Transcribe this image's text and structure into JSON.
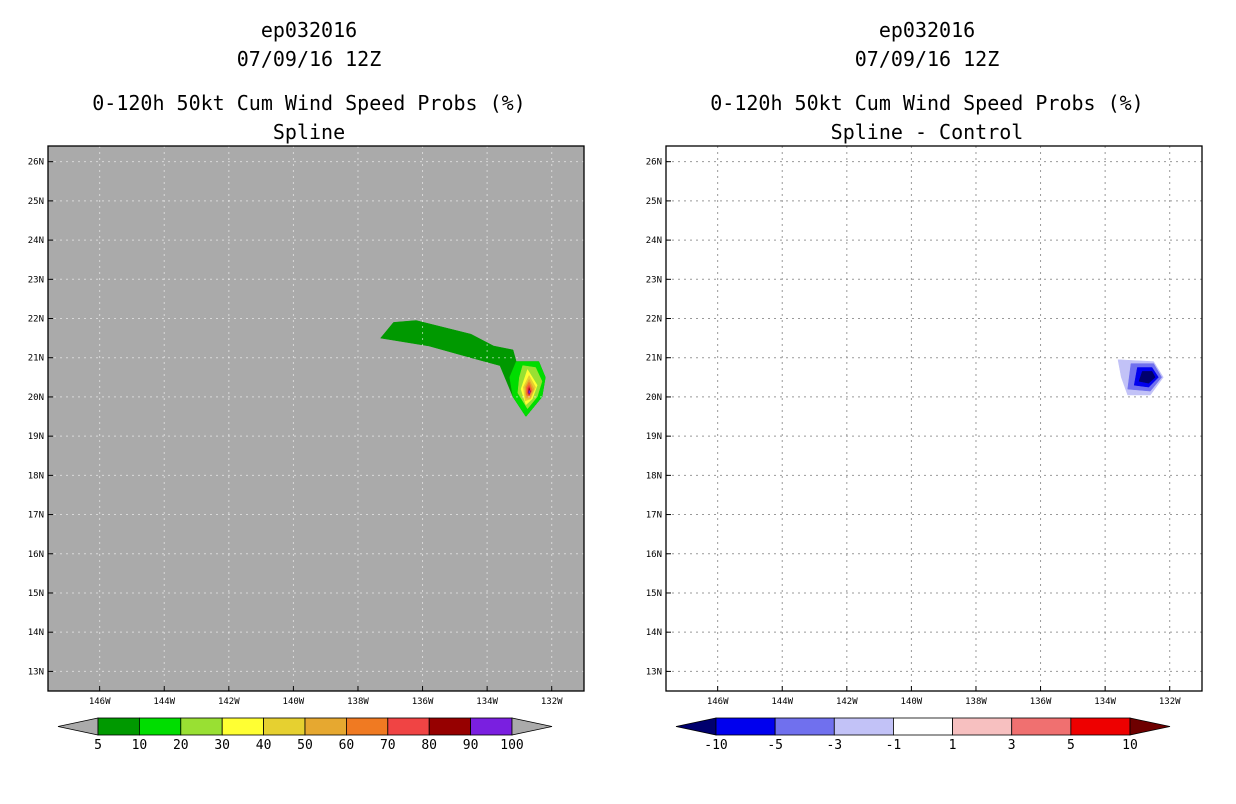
{
  "chart_data": [
    {
      "type": "contour",
      "title": "ep032016",
      "subtitle": "07/09/16 12Z",
      "product": "0-120h 50kt Cum Wind Speed Probs (%)",
      "subtitle2": "Spline",
      "background_color": "#aaaaaa",
      "x_tick_labels": [
        "146W",
        "144W",
        "142W",
        "140W",
        "138W",
        "136W",
        "134W",
        "132W"
      ],
      "x_tick_values": [
        -146,
        -144,
        -142,
        -140,
        -138,
        -136,
        -134,
        -132
      ],
      "y_tick_labels": [
        "13N",
        "14N",
        "15N",
        "16N",
        "17N",
        "18N",
        "19N",
        "20N",
        "21N",
        "22N",
        "23N",
        "24N",
        "25N",
        "26N"
      ],
      "y_tick_values": [
        13,
        14,
        15,
        16,
        17,
        18,
        19,
        20,
        21,
        22,
        23,
        24,
        25,
        26
      ],
      "xlim": [
        -147.6,
        -131.0
      ],
      "ylim": [
        12.5,
        26.4
      ],
      "grid": true,
      "colorbar": {
        "labels": [
          "5",
          "10",
          "20",
          "30",
          "40",
          "50",
          "60",
          "70",
          "80",
          "90",
          "100"
        ],
        "colors": [
          "#009900",
          "#00dd00",
          "#99e033",
          "#ffff33",
          "#e6d030",
          "#e6a830",
          "#f07a22",
          "#f04444",
          "#960000",
          "#7a1fe0"
        ],
        "end_colors": [
          "#aaaaaa",
          "#aaaaaa"
        ]
      },
      "series": [
        {
          "name": "5-10",
          "color": "#009900",
          "lonlat": [
            [
              -137.3,
              21.5
            ],
            [
              -136.9,
              21.9
            ],
            [
              -136.2,
              21.95
            ],
            [
              -134.5,
              21.6
            ],
            [
              -133.8,
              21.3
            ],
            [
              -133.2,
              21.2
            ],
            [
              -133.1,
              20.9
            ],
            [
              -132.4,
              20.9
            ],
            [
              -132.2,
              20.5
            ],
            [
              -132.3,
              20.0
            ],
            [
              -132.8,
              19.5
            ],
            [
              -133.2,
              20.0
            ],
            [
              -133.6,
              20.8
            ],
            [
              -134.5,
              21.0
            ],
            [
              -135.8,
              21.3
            ]
          ]
        },
        {
          "name": "10-20",
          "color": "#00dd00",
          "lonlat": [
            [
              -133.1,
              20.9
            ],
            [
              -132.4,
              20.9
            ],
            [
              -132.2,
              20.5
            ],
            [
              -132.3,
              20.0
            ],
            [
              -132.8,
              19.5
            ],
            [
              -133.2,
              20.0
            ],
            [
              -133.3,
              20.5
            ]
          ]
        },
        {
          "name": "20-30",
          "color": "#99e033",
          "lonlat": [
            [
              -132.9,
              20.8
            ],
            [
              -132.5,
              20.75
            ],
            [
              -132.3,
              20.4
            ],
            [
              -132.45,
              20.0
            ],
            [
              -132.75,
              19.7
            ],
            [
              -133.05,
              20.1
            ],
            [
              -133.0,
              20.5
            ]
          ]
        },
        {
          "name": "30-40",
          "color": "#ffff33",
          "lonlat": [
            [
              -132.75,
              20.7
            ],
            [
              -132.45,
              20.3
            ],
            [
              -132.6,
              19.95
            ],
            [
              -132.8,
              19.8
            ],
            [
              -132.95,
              20.2
            ]
          ]
        },
        {
          "name": "40-50",
          "color": "#e6d030",
          "lonlat": [
            [
              -132.7,
              20.55
            ],
            [
              -132.5,
              20.25
            ],
            [
              -132.65,
              19.95
            ],
            [
              -132.82,
              19.9
            ],
            [
              -132.88,
              20.25
            ]
          ]
        },
        {
          "name": "50-60",
          "color": "#e6a830",
          "lonlat": [
            [
              -132.7,
              20.45
            ],
            [
              -132.55,
              20.2
            ],
            [
              -132.67,
              19.97
            ],
            [
              -132.8,
              19.97
            ],
            [
              -132.83,
              20.25
            ]
          ]
        },
        {
          "name": "60-70",
          "color": "#f07a22",
          "lonlat": [
            [
              -132.7,
              20.38
            ],
            [
              -132.6,
              20.18
            ],
            [
              -132.7,
              20.0
            ],
            [
              -132.79,
              20.05
            ],
            [
              -132.79,
              20.25
            ]
          ]
        },
        {
          "name": "70-80",
          "color": "#f04444",
          "lonlat": [
            [
              -132.7,
              20.3
            ],
            [
              -132.63,
              20.15
            ],
            [
              -132.7,
              20.03
            ],
            [
              -132.76,
              20.1
            ],
            [
              -132.76,
              20.22
            ]
          ]
        },
        {
          "name": "80-90",
          "color": "#960000",
          "lonlat": [
            [
              -132.7,
              20.24
            ],
            [
              -132.66,
              20.13
            ],
            [
              -132.7,
              20.06
            ],
            [
              -132.73,
              20.12
            ]
          ]
        },
        {
          "name": "90-100",
          "color": "#7a1fe0",
          "lonlat": [
            [
              -132.7,
              20.18
            ],
            [
              -132.67,
              20.12
            ],
            [
              -132.7,
              20.08
            ],
            [
              -132.72,
              20.12
            ]
          ]
        }
      ]
    },
    {
      "type": "contour",
      "title": "ep032016",
      "subtitle": "07/09/16 12Z",
      "product": "0-120h 50kt Cum Wind Speed Probs (%)",
      "subtitle2": "Spline - Control",
      "background_color": "#ffffff",
      "x_tick_labels": [
        "146W",
        "144W",
        "142W",
        "140W",
        "138W",
        "136W",
        "134W",
        "132W"
      ],
      "x_tick_values": [
        -146,
        -144,
        -142,
        -140,
        -138,
        -136,
        -134,
        -132
      ],
      "y_tick_labels": [
        "13N",
        "14N",
        "15N",
        "16N",
        "17N",
        "18N",
        "19N",
        "20N",
        "21N",
        "22N",
        "23N",
        "24N",
        "25N",
        "26N"
      ],
      "y_tick_values": [
        13,
        14,
        15,
        16,
        17,
        18,
        19,
        20,
        21,
        22,
        23,
        24,
        25,
        26
      ],
      "xlim": [
        -147.6,
        -131.0
      ],
      "ylim": [
        12.5,
        26.4
      ],
      "grid": true,
      "colorbar": {
        "labels": [
          "-10",
          "-5",
          "-3",
          "-1",
          "1",
          "3",
          "5",
          "10"
        ],
        "colors": [
          "#0000ee",
          "#7070ee",
          "#c2c2f7",
          "#ffffff",
          "#f7c0c0",
          "#f07070",
          "#ee0000"
        ],
        "end_colors": [
          "#00006e",
          "#6e0000"
        ]
      },
      "series": [
        {
          "name": "-3 to -1",
          "color": "#c2c2f7",
          "lonlat": [
            [
              -133.6,
              20.95
            ],
            [
              -132.5,
              20.9
            ],
            [
              -132.2,
              20.5
            ],
            [
              -132.6,
              20.05
            ],
            [
              -133.3,
              20.05
            ],
            [
              -133.5,
              20.5
            ]
          ]
        },
        {
          "name": "-5 to -3",
          "color": "#7070ee",
          "lonlat": [
            [
              -133.2,
              20.85
            ],
            [
              -132.5,
              20.85
            ],
            [
              -132.25,
              20.5
            ],
            [
              -132.6,
              20.15
            ],
            [
              -133.3,
              20.2
            ]
          ]
        },
        {
          "name": "-10 to -5",
          "color": "#0000ee",
          "lonlat": [
            [
              -133.0,
              20.75
            ],
            [
              -132.55,
              20.75
            ],
            [
              -132.35,
              20.5
            ],
            [
              -132.65,
              20.25
            ],
            [
              -133.1,
              20.3
            ]
          ]
        },
        {
          "name": "< -10",
          "color": "#00006e",
          "lonlat": [
            [
              -132.85,
              20.65
            ],
            [
              -132.55,
              20.65
            ],
            [
              -132.45,
              20.5
            ],
            [
              -132.65,
              20.35
            ],
            [
              -132.95,
              20.4
            ]
          ]
        }
      ]
    }
  ]
}
